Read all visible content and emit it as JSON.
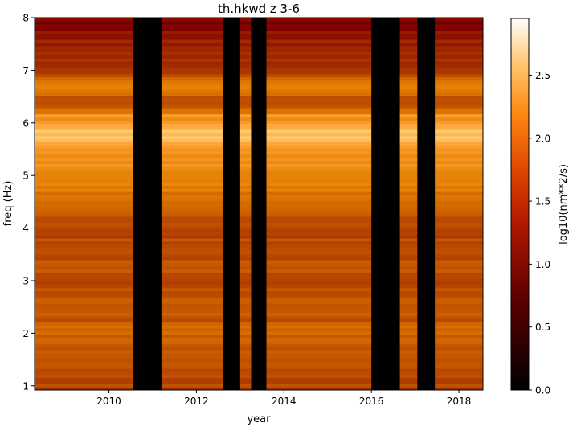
{
  "chart_data": {
    "type": "heatmap",
    "title": "th.hkwd z 3-6",
    "xlabel": "year",
    "ylabel": "freq (Hz)",
    "colorbar_label": "log10(nm**2/s)",
    "colormap": "gist_heat",
    "xlim": [
      2008.3,
      2018.55
    ],
    "ylim": [
      0.92,
      8.0
    ],
    "x_ticks": [
      {
        "value": 2010,
        "label": "2010"
      },
      {
        "value": 2012,
        "label": "2012"
      },
      {
        "value": 2014,
        "label": "2014"
      },
      {
        "value": 2016,
        "label": "2016"
      },
      {
        "value": 2018,
        "label": "2018"
      }
    ],
    "y_ticks": [
      {
        "value": 1,
        "label": "1"
      },
      {
        "value": 2,
        "label": "2"
      },
      {
        "value": 3,
        "label": "3"
      },
      {
        "value": 4,
        "label": "4"
      },
      {
        "value": 5,
        "label": "5"
      },
      {
        "value": 6,
        "label": "6"
      },
      {
        "value": 7,
        "label": "7"
      },
      {
        "value": 8,
        "label": "8"
      }
    ],
    "colorbar_range": [
      0.0,
      2.95
    ],
    "colorbar_ticks": [
      {
        "value": 0.0,
        "label": "0.0"
      },
      {
        "value": 0.5,
        "label": "0.5"
      },
      {
        "value": 1.0,
        "label": "1.0"
      },
      {
        "value": 1.5,
        "label": "1.5"
      },
      {
        "value": 2.0,
        "label": "2.0"
      },
      {
        "value": 2.5,
        "label": "2.5"
      }
    ],
    "data_gaps": [
      [
        2010.55,
        2011.2
      ],
      [
        2012.6,
        2013.0
      ],
      [
        2013.25,
        2013.6
      ],
      [
        2016.0,
        2016.65
      ],
      [
        2017.05,
        2017.45
      ]
    ],
    "frequency_profile": [
      [
        0.92,
        1.45
      ],
      [
        1.2,
        1.5
      ],
      [
        1.6,
        1.55
      ],
      [
        2.0,
        1.7
      ],
      [
        2.3,
        1.55
      ],
      [
        2.6,
        1.55
      ],
      [
        3.0,
        1.5
      ],
      [
        3.4,
        1.55
      ],
      [
        3.8,
        1.5
      ],
      [
        4.1,
        1.45
      ],
      [
        4.3,
        1.7
      ],
      [
        4.8,
        1.8
      ],
      [
        5.2,
        1.9
      ],
      [
        5.5,
        2.0
      ],
      [
        5.8,
        2.3
      ],
      [
        6.1,
        2.0
      ],
      [
        6.4,
        1.5
      ],
      [
        6.7,
        1.8
      ],
      [
        7.0,
        1.45
      ],
      [
        7.3,
        1.3
      ],
      [
        7.6,
        1.2
      ],
      [
        8.0,
        1.0
      ]
    ],
    "grid": false
  }
}
